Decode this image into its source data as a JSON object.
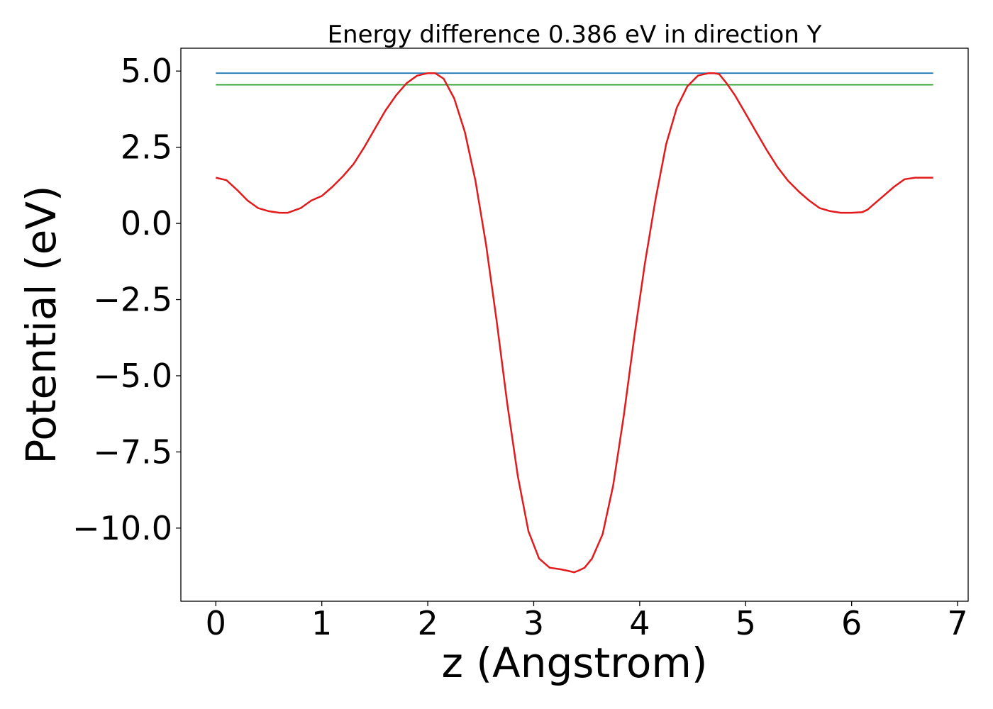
{
  "chart_data": {
    "type": "line",
    "title": "Energy difference 0.386 eV in direction Y",
    "xlabel": "z (Angstrom)",
    "ylabel": "Potential (eV)",
    "xlim": [
      -0.33,
      7.1
    ],
    "ylim": [
      -12.4,
      5.75
    ],
    "xticks": [
      0,
      1,
      2,
      3,
      4,
      5,
      6,
      7
    ],
    "xtick_labels": [
      "0",
      "1",
      "2",
      "3",
      "4",
      "5",
      "6",
      "7"
    ],
    "yticks": [
      5.0,
      2.5,
      0.0,
      -2.5,
      -5.0,
      -7.5,
      -10.0
    ],
    "ytick_labels": [
      "5.0",
      "2.5",
      "0.0",
      "−2.5",
      "−5.0",
      "−7.5",
      "−10.0"
    ],
    "grid": false,
    "series": [
      {
        "color": "#1f77b4",
        "x": [
          0,
          6.77
        ],
        "y": [
          4.93,
          4.93
        ]
      },
      {
        "color": "#2ca02c",
        "x": [
          0,
          6.77
        ],
        "y": [
          4.55,
          4.55
        ]
      },
      {
        "color": "#e31a1c",
        "x": [
          0.0,
          0.1,
          0.2,
          0.3,
          0.4,
          0.5,
          0.6,
          0.68,
          0.8,
          0.9,
          1.0,
          1.1,
          1.2,
          1.3,
          1.4,
          1.5,
          1.6,
          1.7,
          1.8,
          1.9,
          2.0,
          2.07,
          2.15,
          2.25,
          2.35,
          2.45,
          2.55,
          2.65,
          2.75,
          2.85,
          2.95,
          3.05,
          3.15,
          3.25,
          3.32,
          3.38,
          3.42,
          3.48,
          3.55,
          3.65,
          3.75,
          3.85,
          3.95,
          4.05,
          4.15,
          4.25,
          4.35,
          4.45,
          4.55,
          4.65,
          4.7,
          4.75,
          4.82,
          4.9,
          5.0,
          5.1,
          5.2,
          5.3,
          5.4,
          5.5,
          5.6,
          5.7,
          5.8,
          5.9,
          6.0,
          6.1,
          6.15,
          6.2,
          6.3,
          6.4,
          6.5,
          6.6,
          6.7,
          6.77
        ],
        "y": [
          1.5,
          1.42,
          1.1,
          0.75,
          0.5,
          0.4,
          0.35,
          0.35,
          0.5,
          0.75,
          0.9,
          1.2,
          1.55,
          1.95,
          2.5,
          3.1,
          3.7,
          4.2,
          4.6,
          4.85,
          4.93,
          4.93,
          4.75,
          4.1,
          3.0,
          1.4,
          -0.7,
          -3.2,
          -5.9,
          -8.3,
          -10.1,
          -11.0,
          -11.3,
          -11.35,
          -11.4,
          -11.45,
          -11.4,
          -11.3,
          -11.0,
          -10.2,
          -8.6,
          -6.3,
          -3.7,
          -1.3,
          0.8,
          2.6,
          3.8,
          4.5,
          4.85,
          4.93,
          4.93,
          4.9,
          4.6,
          4.2,
          3.6,
          3.0,
          2.4,
          1.85,
          1.4,
          1.05,
          0.75,
          0.5,
          0.4,
          0.35,
          0.35,
          0.37,
          0.45,
          0.6,
          0.9,
          1.2,
          1.45,
          1.5,
          1.5,
          1.5
        ]
      }
    ]
  }
}
